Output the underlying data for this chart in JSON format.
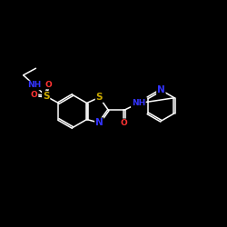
{
  "bg_color": "#000000",
  "bond_color": "#ffffff",
  "atom_colors": {
    "N": "#3333ff",
    "S": "#ccaa00",
    "O": "#ff3333",
    "C": "#ffffff"
  },
  "font_size": 6.5,
  "lw": 1.1
}
